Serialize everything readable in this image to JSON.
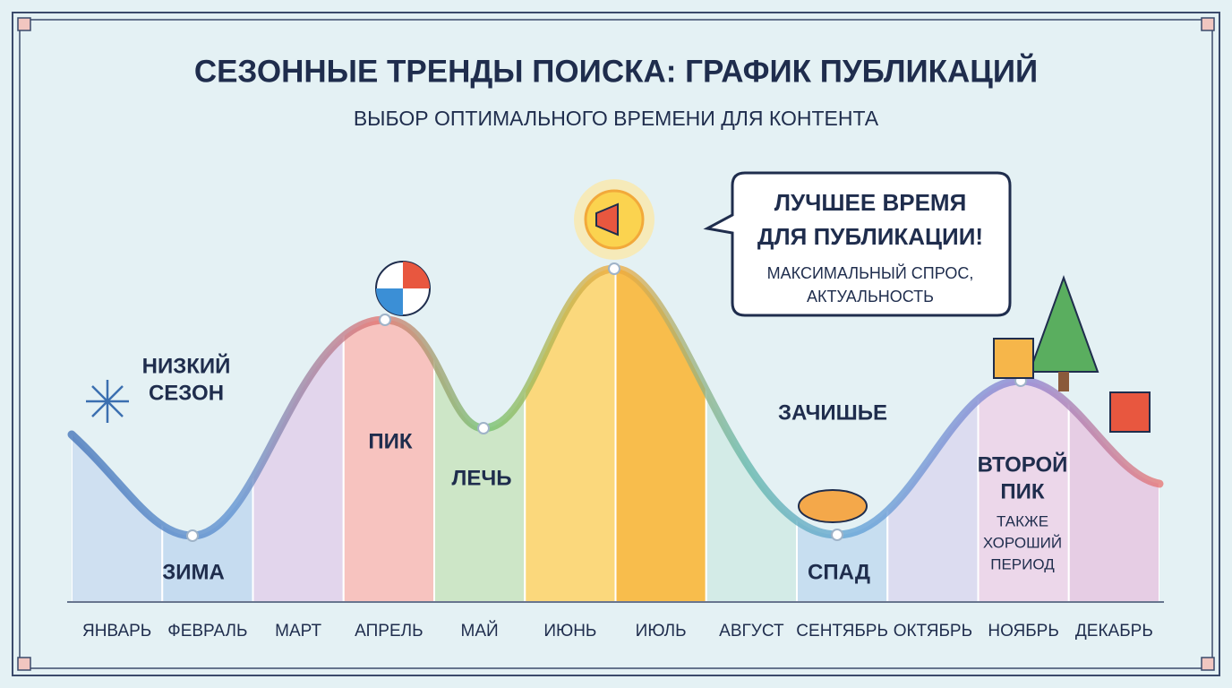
{
  "header": {
    "title": "СЕЗОННЫЕ ТРЕНДЫ ПОИСКА: ГРАФИК ПУБЛИКАЦИЙ",
    "subtitle": "ВЫБОР ОПТИМАЛЬНОГО ВРЕМЕНИ ДЛЯ КОНТЕНТА"
  },
  "months": [
    "ЯНВАРЬ",
    "ФЕВРАЛЬ",
    "МАРТ",
    "АПРЕЛЬ",
    "МАЙ",
    "ИЮНЬ",
    "ИЮЛЬ",
    "АВГУСТ",
    "СЕНТЯБРЬ",
    "ОКТЯБРЬ",
    "НОЯБРЬ",
    "ДЕКАБРЬ"
  ],
  "labels": {
    "low_season": [
      "НИЗКИЙ",
      "СЕЗОН"
    ],
    "winter": "ЗИМА",
    "peak": "ПИК",
    "dip": "ЛЕЧЬ",
    "lull": "ЗАЧИШЬЕ",
    "decline": "СПАД",
    "second_peak": [
      "ВТОРОЙ",
      "ПИК"
    ],
    "second_peak_note": [
      "ТАКЖЕ",
      "ХОРОШИЙ",
      "ПЕРИОД"
    ]
  },
  "callout": {
    "title": [
      "ЛУЧШЕЕ ВРЕМЯ",
      "ДЛЯ ПУБЛИКАЦИИ!"
    ],
    "text": [
      "МАКСИМАЛЬНЫЙ СПРОС,",
      "АКТУАЛЬНОСТЬ"
    ]
  }
}
